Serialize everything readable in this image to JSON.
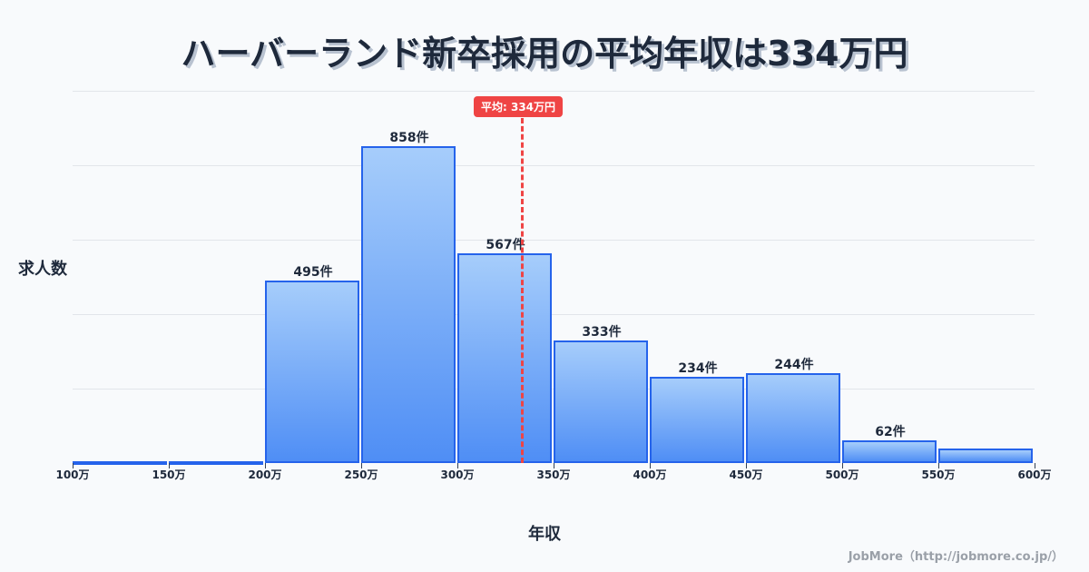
{
  "title": "ハーバーランド新卒採用の平均年収は334万円",
  "mean_badge": "平均: 334万円",
  "ylabel": "求人数",
  "xlabel": "年収",
  "credit": "JobMore（http://jobmore.co.jp/）",
  "colors": {
    "bar_border": "#2563eb",
    "bar_top": "#a6cdfb",
    "bar_bottom": "#4f8ef5",
    "mean_line": "#ef4444",
    "text": "#1e293b"
  },
  "ticks": [
    "100万",
    "150万",
    "200万",
    "250万",
    "300万",
    "350万",
    "400万",
    "450万",
    "500万",
    "550万",
    "600万"
  ],
  "bars": [
    {
      "range": "100-150万",
      "label": ""
    },
    {
      "range": "150-200万",
      "label": ""
    },
    {
      "range": "200-250万",
      "label": "495件"
    },
    {
      "range": "250-300万",
      "label": "858件"
    },
    {
      "range": "300-350万",
      "label": "567件"
    },
    {
      "range": "350-400万",
      "label": "333件"
    },
    {
      "range": "400-450万",
      "label": "234件"
    },
    {
      "range": "450-500万",
      "label": "244件"
    },
    {
      "range": "500-550万",
      "label": "62件"
    },
    {
      "range": "550-600万",
      "label": ""
    }
  ],
  "chart_data": {
    "type": "bar",
    "title": "ハーバーランド新卒採用の平均年収は334万円",
    "xlabel": "年収",
    "ylabel": "求人数",
    "categories": [
      "100-150万",
      "150-200万",
      "200-250万",
      "250-300万",
      "300-350万",
      "350-400万",
      "400-450万",
      "450-500万",
      "500-550万",
      "550-600万"
    ],
    "values": [
      2,
      5,
      495,
      858,
      567,
      333,
      234,
      244,
      62,
      39
    ],
    "x_ticks": [
      "100万",
      "150万",
      "200万",
      "250万",
      "300万",
      "350万",
      "400万",
      "450万",
      "500万",
      "550万",
      "600万"
    ],
    "annotations": [
      {
        "type": "vline",
        "x": 334,
        "label": "平均: 334万円",
        "color": "#ef4444",
        "style": "dashed"
      }
    ],
    "ylim": [
      0,
      1000
    ],
    "grid": true,
    "legend": "none"
  }
}
